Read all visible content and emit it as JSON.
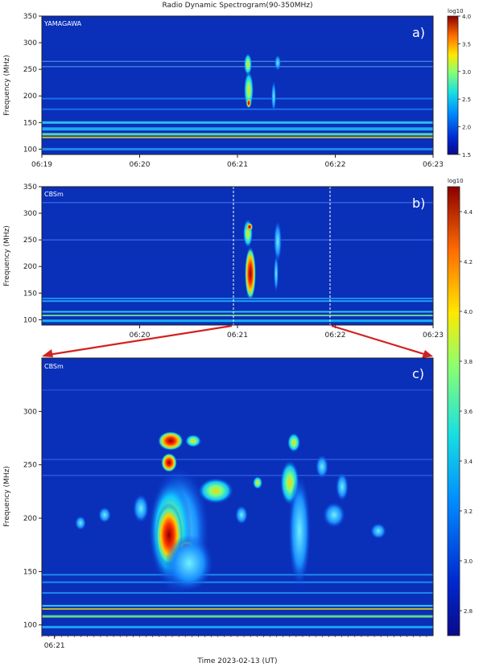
{
  "title": "Radio Dynamic Spectrogram(90-350MHz)",
  "xlabel": "Time 2023-02-13 (UT)",
  "colors": {
    "background_low": "#0a1f9a",
    "frame": "#222222",
    "zoom_arrow": "#d42020",
    "burst_peak": "#b30000"
  },
  "chart_data": [
    {
      "type": "heatmap",
      "panel_label": "a)",
      "station": "YAMAGAWA",
      "ylabel": "Frequency (MHz)",
      "yticks": [
        100,
        150,
        200,
        250,
        300,
        350
      ],
      "ylim": [
        90,
        350
      ],
      "xticks": [
        "06:19",
        "06:20",
        "06:21",
        "06:22",
        "06:23"
      ],
      "xlim": [
        "06:19",
        "06:23"
      ],
      "colorbar": {
        "label": "log10",
        "min": 1.5,
        "max": 4.0,
        "ticks": [
          "1.5",
          "2.0",
          "2.5",
          "3.0",
          "3.5",
          "4.0"
        ]
      },
      "features": [
        {
          "name": "main burst",
          "time": "06:21:10",
          "freq_range_mhz": [
            140,
            280
          ],
          "intensity": 3.5
        },
        {
          "name": "secondary burst",
          "time": "06:21:28",
          "freq_range_mhz": [
            180,
            270
          ],
          "intensity": 2.6
        },
        {
          "name": "narrowband interference",
          "freq_mhz": [
            120,
            150
          ],
          "intensity": 3.0
        }
      ]
    },
    {
      "type": "heatmap",
      "panel_label": "b)",
      "station": "CBSm",
      "ylabel": "Frequency (MHz)",
      "yticks": [
        100,
        150,
        200,
        250,
        300,
        350
      ],
      "ylim": [
        90,
        350
      ],
      "xticks": [
        "06:20",
        "06:21",
        "06:22",
        "06:23"
      ],
      "xlim": [
        "06:19",
        "06:23"
      ],
      "zoom_window": [
        "06:21",
        "06:22"
      ],
      "colorbar": {
        "label": "log10",
        "min": 2.7,
        "max": 4.5,
        "ticks": [
          "2.8",
          "3.0",
          "3.2",
          "3.4",
          "3.6",
          "3.8",
          "4.0",
          "4.2",
          "4.4"
        ]
      },
      "features": [
        {
          "name": "main burst",
          "time": "06:21:10",
          "freq_range_mhz": [
            125,
            285
          ],
          "intensity": 4.4
        },
        {
          "name": "secondary burst",
          "time": "06:21:28",
          "freq_range_mhz": [
            140,
            280
          ],
          "intensity": 3.6
        }
      ]
    },
    {
      "type": "heatmap",
      "panel_label": "c)",
      "station": "CBSm",
      "ylabel": "Frequency (MHz)",
      "yticks": [
        100,
        150,
        200,
        250,
        300
      ],
      "ylim": [
        90,
        350
      ],
      "xticks": [
        "06:21"
      ],
      "xlim": [
        "06:20:58",
        "06:22:00"
      ],
      "features": [
        {
          "name": "main burst",
          "time": "06:21:10",
          "freq_range_mhz": [
            125,
            285
          ],
          "intensity": 4.4
        },
        {
          "name": "secondary burst",
          "time": "06:21:28",
          "freq_range_mhz": [
            140,
            280
          ],
          "intensity": 3.6
        }
      ]
    }
  ]
}
